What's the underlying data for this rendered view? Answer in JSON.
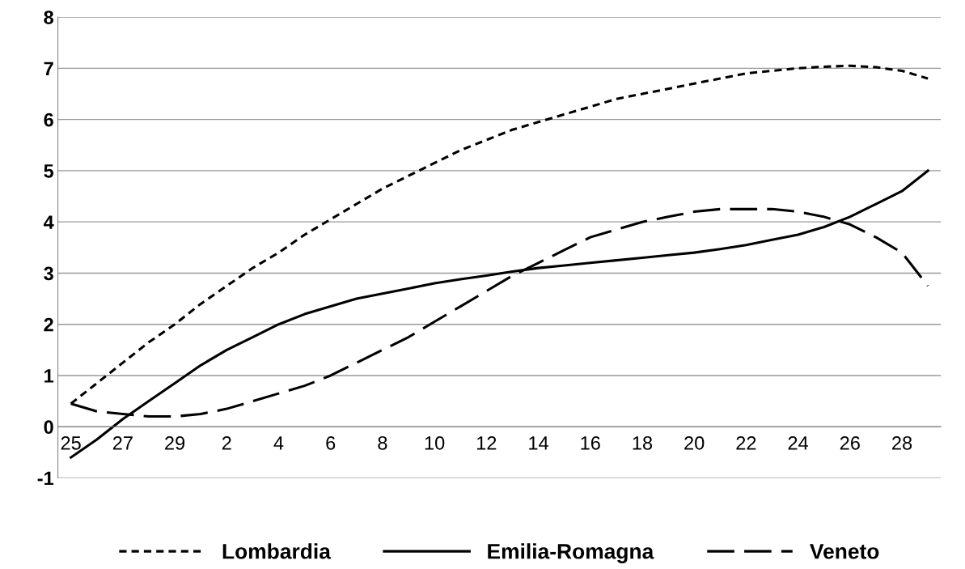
{
  "chart_data": {
    "type": "line",
    "categories": [
      "25",
      null,
      "27",
      null,
      "29",
      null,
      "2",
      null,
      "4",
      null,
      "6",
      null,
      "8",
      null,
      "10",
      null,
      "12",
      null,
      "14",
      null,
      "16",
      null,
      "18",
      null,
      "20",
      null,
      "22",
      null,
      "24",
      null,
      "26",
      null,
      "28",
      null
    ],
    "series": [
      {
        "name": "Lombardia",
        "color": "#000000",
        "line_style": "dotted",
        "values": [
          0.45,
          0.85,
          1.25,
          1.65,
          2.0,
          2.4,
          2.75,
          3.1,
          3.4,
          3.75,
          4.05,
          4.35,
          4.65,
          4.9,
          5.15,
          5.4,
          5.6,
          5.8,
          5.95,
          6.1,
          6.25,
          6.4,
          6.5,
          6.6,
          6.7,
          6.8,
          6.9,
          6.95,
          7.0,
          7.03,
          7.05,
          7.02,
          6.95,
          6.8
        ]
      },
      {
        "name": "Emilia-Romagna",
        "color": "#000000",
        "line_style": "solid",
        "values": [
          -0.6,
          -0.25,
          0.15,
          0.5,
          0.85,
          1.2,
          1.5,
          1.75,
          2.0,
          2.2,
          2.35,
          2.5,
          2.6,
          2.7,
          2.8,
          2.88,
          2.95,
          3.03,
          3.1,
          3.15,
          3.2,
          3.25,
          3.3,
          3.35,
          3.4,
          3.47,
          3.55,
          3.65,
          3.75,
          3.9,
          4.1,
          4.35,
          4.6,
          5.0
        ]
      },
      {
        "name": "Veneto",
        "color": "#000000",
        "line_style": "dashed",
        "values": [
          0.45,
          0.3,
          0.25,
          0.2,
          0.2,
          0.25,
          0.35,
          0.5,
          0.65,
          0.8,
          1.0,
          1.25,
          1.5,
          1.75,
          2.05,
          2.35,
          2.65,
          2.95,
          3.2,
          3.45,
          3.7,
          3.85,
          4.0,
          4.1,
          4.2,
          4.25,
          4.25,
          4.25,
          4.2,
          4.1,
          3.95,
          3.7,
          3.4,
          2.75
        ]
      }
    ],
    "ylim": [
      -1,
      8
    ],
    "yticks": [
      -1,
      0,
      1,
      2,
      3,
      4,
      5,
      6,
      7,
      8
    ],
    "grid": "y",
    "legend": "bottom"
  }
}
